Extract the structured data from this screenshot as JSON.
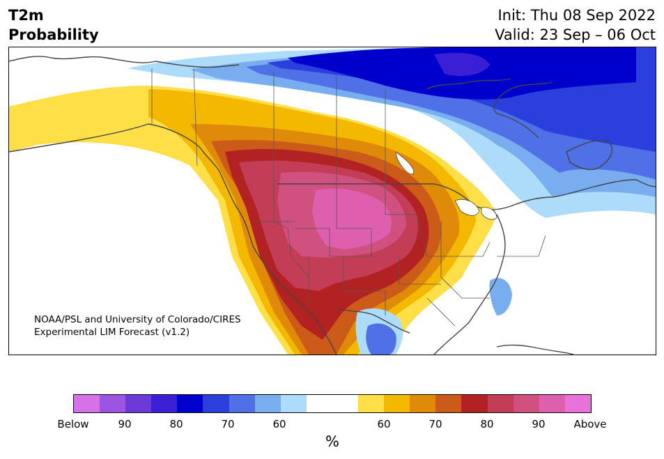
{
  "header": {
    "title_line1": "T2m",
    "title_line2": "Probability",
    "init": "Init: Thu 08 Sep 2022",
    "valid": "Valid: 23 Sep – 06 Oct"
  },
  "credit": {
    "line1": "NOAA/PSL and University of Colorado/CIRES",
    "line2": "Experimental LIM Forecast (v1.2)"
  },
  "colorbar": {
    "colors": [
      "#d672e8",
      "#9b55e0",
      "#6b3ad8",
      "#3a1fd4",
      "#0000cc",
      "#2a3fdc",
      "#4f70e6",
      "#78aef0",
      "#acdcfa",
      "#ffffff",
      "#ffffff",
      "#ffdf48",
      "#f4b800",
      "#e08a0a",
      "#cc5a18",
      "#b22222",
      "#c23d55",
      "#d05080",
      "#dd5fae",
      "#e872d8"
    ],
    "ticks": [
      "Below",
      "90",
      "80",
      "70",
      "60",
      "60",
      "70",
      "80",
      "90",
      "Above"
    ],
    "units": "%"
  },
  "map": {
    "below_categories": [
      "Below",
      "90",
      "80",
      "70",
      "60"
    ],
    "above_categories": [
      "60",
      "70",
      "80",
      "90",
      "Above"
    ],
    "strongest_above_region": "central US / Rocky Mountains",
    "strongest_below_region": "northern Canada / Hudson Bay"
  }
}
